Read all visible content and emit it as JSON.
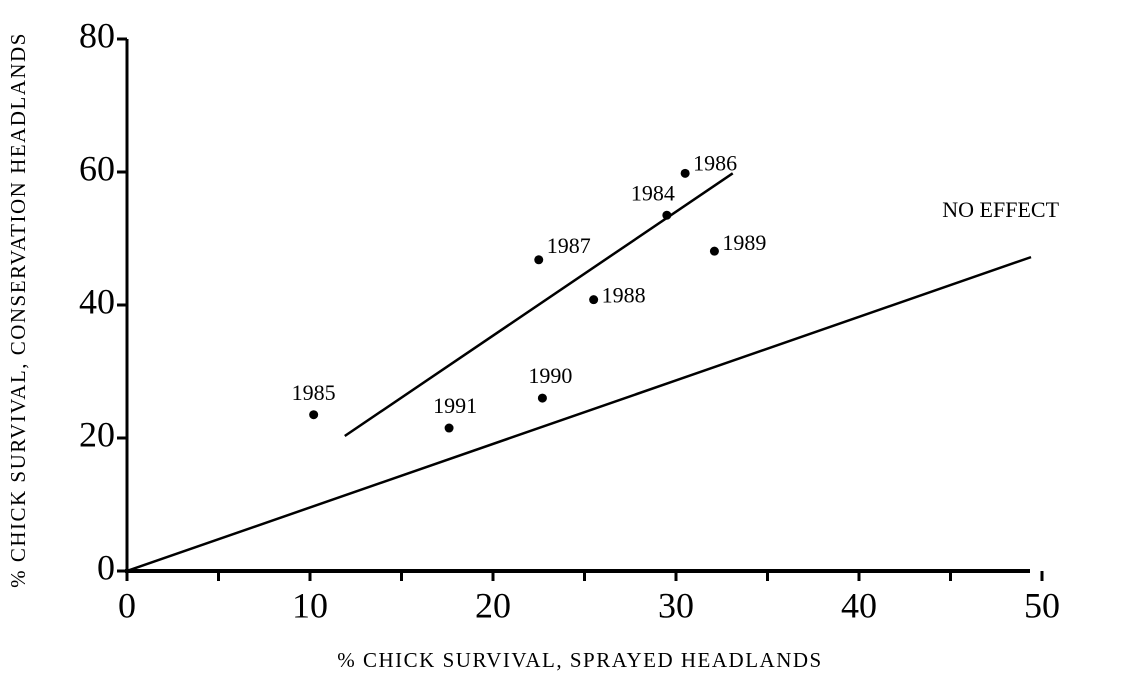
{
  "chart_data": {
    "type": "scatter",
    "xlabel": "% CHICK SURVIVAL, SPRAYED HEADLANDS",
    "ylabel": "% CHICK SURVIVAL, CONSERVATION HEADLANDS",
    "xlim": [
      0,
      50
    ],
    "ylim": [
      0,
      80
    ],
    "xticks": [
      0,
      10,
      20,
      30,
      40,
      50
    ],
    "yticks": [
      0,
      20,
      40,
      60,
      80
    ],
    "series": [
      {
        "color": "#000000",
        "labels": [
          "1985",
          "1991",
          "1990",
          "1987",
          "1988",
          "1984",
          "1986",
          "1989"
        ],
        "x": [
          10.2,
          17.6,
          22.7,
          22.5,
          25.5,
          29.5,
          30.5,
          32.1
        ],
        "values": [
          23.5,
          21.5,
          26.0,
          46.8,
          40.8,
          53.5,
          59.8,
          48.1
        ]
      }
    ],
    "lines": [
      {
        "x": [
          11.9,
          33.1
        ],
        "values": [
          20.3,
          59.8
        ]
      },
      {
        "name": "NO EFFECT",
        "x": [
          0,
          49.4
        ],
        "values": [
          0,
          47.2
        ]
      }
    ]
  }
}
